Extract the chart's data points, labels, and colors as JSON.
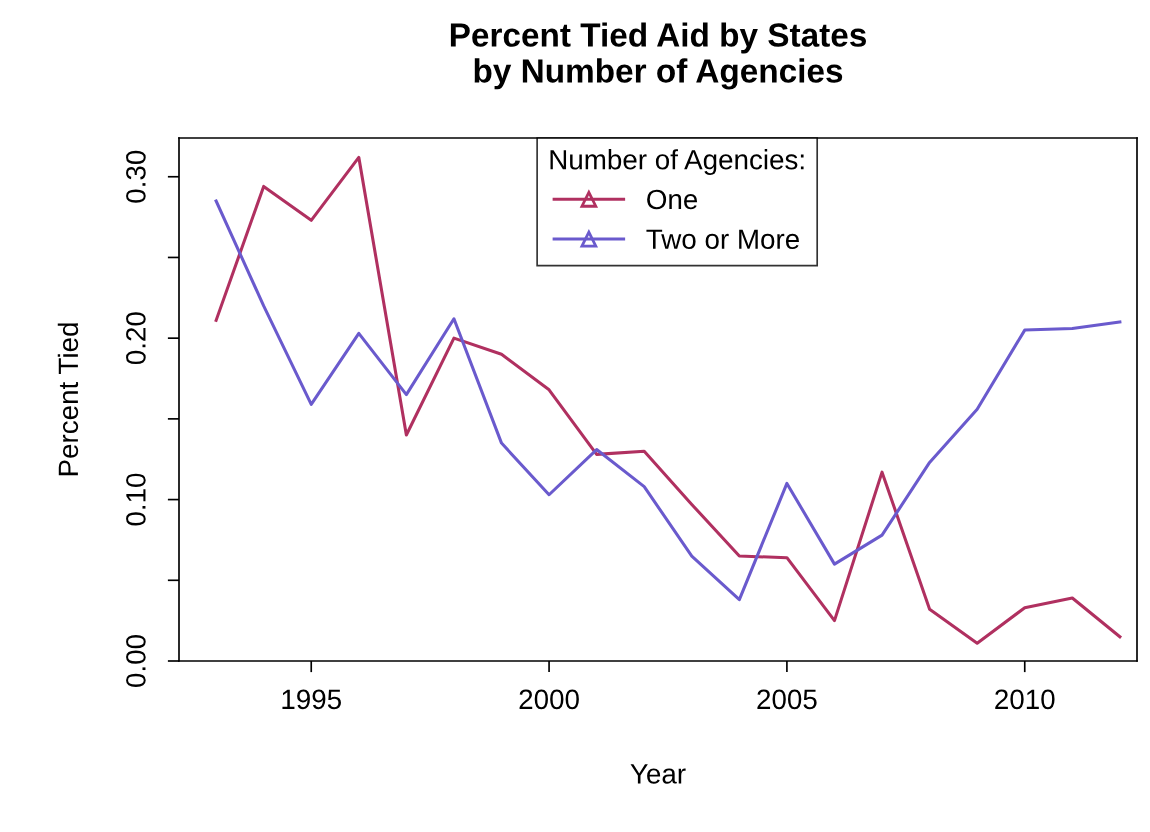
{
  "chart_data": {
    "type": "line",
    "title": "Percent Tied Aid by States\nby Number of Agencies",
    "xlabel": "Year",
    "ylabel": "Percent Tied",
    "legend_title": "Number of Agencies:",
    "legend": "top",
    "grid": false,
    "marker": "none",
    "line_style": "solid",
    "x": [
      1993,
      1994,
      1995,
      1996,
      1997,
      1998,
      1999,
      2000,
      2001,
      2002,
      2003,
      2004,
      2005,
      2006,
      2007,
      2008,
      2009,
      2010,
      2011,
      2012
    ],
    "series": [
      {
        "name": "One",
        "color": "#b03060",
        "values": [
          0.211,
          0.294,
          0.273,
          0.312,
          0.14,
          0.2,
          0.19,
          0.168,
          0.128,
          0.13,
          0.097,
          0.065,
          0.064,
          0.025,
          0.117,
          0.032,
          0.011,
          0.033,
          0.039,
          0.015
        ]
      },
      {
        "name": "Two or More",
        "color": "#6a5acd",
        "values": [
          0.285,
          0.22,
          0.159,
          0.203,
          0.165,
          0.212,
          0.135,
          0.103,
          0.131,
          0.108,
          0.065,
          0.038,
          0.11,
          0.06,
          0.078,
          0.123,
          0.156,
          0.205,
          0.206,
          0.21
        ]
      }
    ],
    "xlim": [
      1992.22,
      2012.36
    ],
    "xticks": [
      1995,
      2000,
      2005,
      2010
    ],
    "ylim": [
      0,
      0.324
    ],
    "yticks": [
      {
        "value": 0,
        "label": "0.00"
      },
      {
        "value": 0.05,
        "label": null
      },
      {
        "value": 0.1,
        "label": "0.10"
      },
      {
        "value": 0.15,
        "label": null
      },
      {
        "value": 0.2,
        "label": "0.20"
      },
      {
        "value": 0.25,
        "label": null
      },
      {
        "value": 0.3,
        "label": "0.30"
      }
    ]
  }
}
